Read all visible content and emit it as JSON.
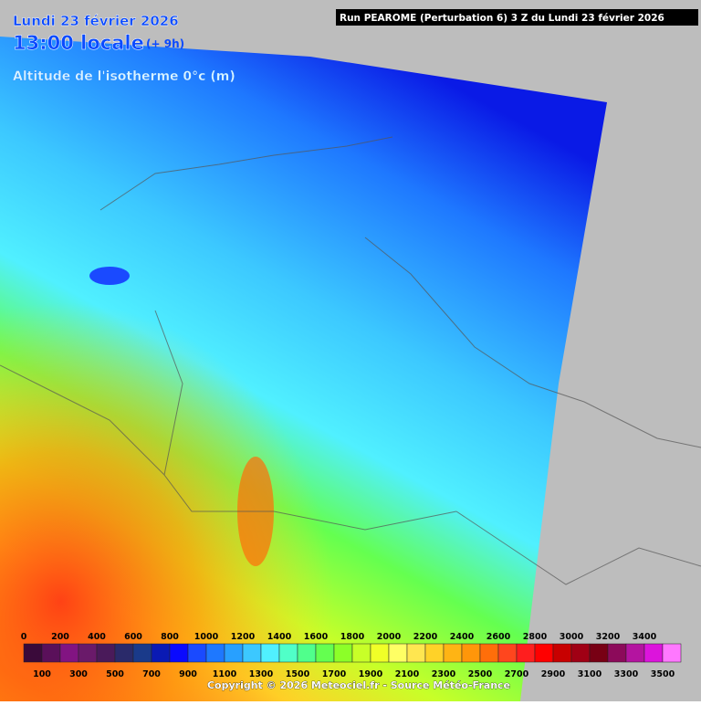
{
  "header": {
    "date": "Lundi 23 février 2026",
    "time": "13:00 locale",
    "lead": "(+ 9h)",
    "run": "Run PEAROME (Perturbation 6) 3 Z du Lundi 23 février 2026"
  },
  "map": {
    "title": "Altitude de l'isotherme 0°c (m)"
  },
  "legend": {
    "labels": [
      0,
      100,
      200,
      300,
      400,
      500,
      600,
      700,
      800,
      900,
      1000,
      1100,
      1200,
      1300,
      1400,
      1500,
      1600,
      1700,
      1800,
      1900,
      2000,
      2100,
      2200,
      2300,
      2400,
      2500,
      2600,
      2700,
      2800,
      2900,
      3000,
      3100,
      3200,
      3300,
      3400,
      3500
    ],
    "colors": [
      "#3a0a3a",
      "#5a105a",
      "#821482",
      "#6a1a6a",
      "#4a1a5a",
      "#2a2a6a",
      "#1a3a8a",
      "#0a1ab4",
      "#0a0aff",
      "#1a4aff",
      "#1e78ff",
      "#28a0ff",
      "#3cc8ff",
      "#50f0ff",
      "#50ffc8",
      "#50ff8c",
      "#64ff50",
      "#8cff28",
      "#c8ff28",
      "#f0ff28",
      "#ffff64",
      "#ffe650",
      "#ffd228",
      "#ffb414",
      "#ff960a",
      "#ff6e0a",
      "#ff461e",
      "#ff1e1e",
      "#ff0000",
      "#c80000",
      "#a00014",
      "#780014",
      "#8c0a5a",
      "#b414a0",
      "#dc14dc",
      "#ff78ff"
    ]
  },
  "footer": {
    "copyright": "Copyright © 2026 Meteociel.fr - Source Météo-France"
  }
}
